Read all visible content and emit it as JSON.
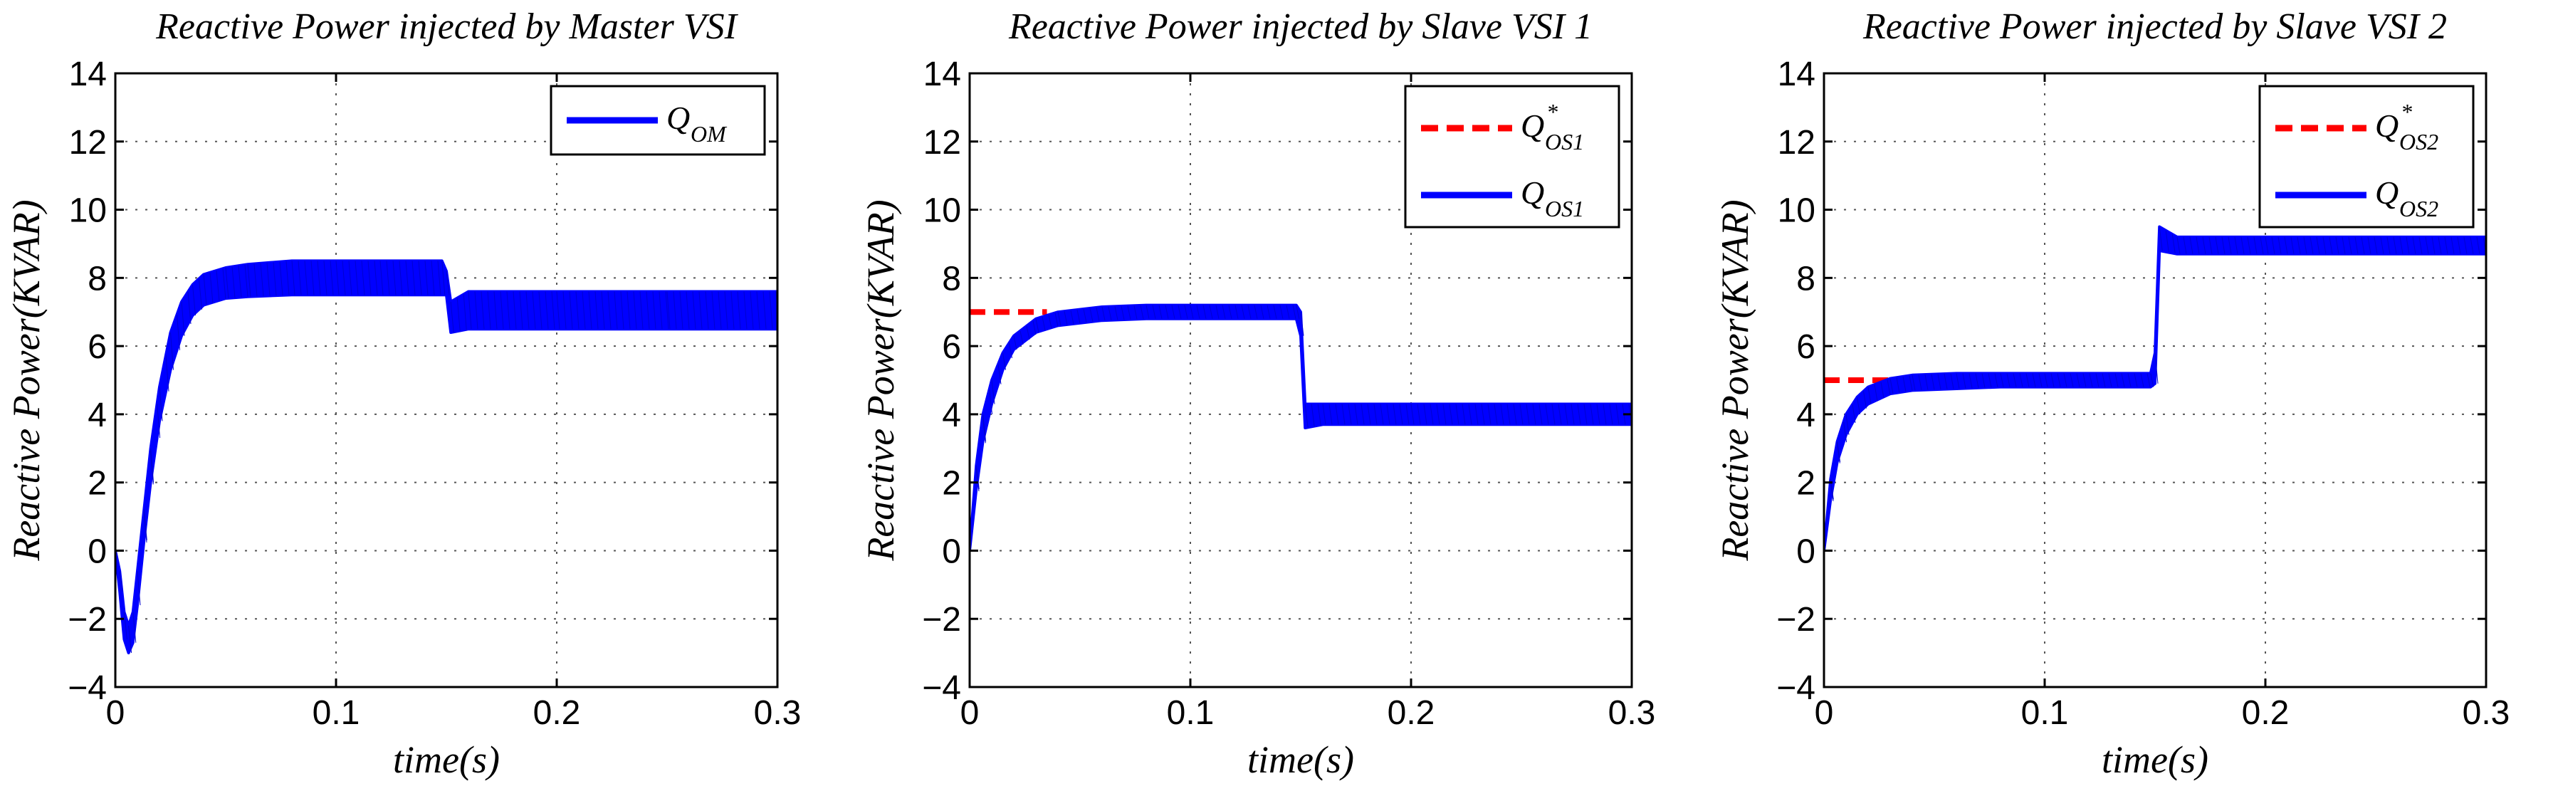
{
  "chart_data": [
    {
      "type": "line",
      "title": "Reactive Power injected by Master VSI",
      "xlabel": "time(s)",
      "ylabel": "Reactive Power(KVAR)",
      "xlim": [
        0,
        0.3
      ],
      "ylim": [
        -4,
        14
      ],
      "xticks": [
        "0",
        "0.1",
        "0.2",
        "0.3"
      ],
      "yticks": [
        "−4",
        "−2",
        "0",
        "2",
        "4",
        "6",
        "8",
        "10",
        "12",
        "14"
      ],
      "grid": true,
      "legend_position": "top-right",
      "series": [
        {
          "legend_main": "Q",
          "legend_sub": "OM",
          "legend_sup": "",
          "color": "#0000ff",
          "style": "solid",
          "band": true,
          "x": [
            0,
            0.002,
            0.004,
            0.006,
            0.008,
            0.01,
            0.013,
            0.016,
            0.02,
            0.025,
            0.03,
            0.035,
            0.04,
            0.05,
            0.06,
            0.08,
            0.1,
            0.12,
            0.148,
            0.15,
            0.152,
            0.16,
            0.2,
            0.25,
            0.3
          ],
          "low": [
            0,
            -1.2,
            -2.6,
            -3.0,
            -2.7,
            -1.6,
            0.3,
            2.0,
            3.8,
            5.3,
            6.3,
            6.9,
            7.2,
            7.4,
            7.45,
            7.5,
            7.5,
            7.5,
            7.5,
            7.5,
            6.4,
            6.5,
            6.5,
            6.5,
            6.5
          ],
          "high": [
            0,
            -0.6,
            -1.8,
            -2.2,
            -1.8,
            -0.6,
            1.2,
            3.0,
            4.8,
            6.4,
            7.3,
            7.8,
            8.1,
            8.3,
            8.4,
            8.5,
            8.5,
            8.5,
            8.5,
            8.2,
            7.3,
            7.6,
            7.6,
            7.6,
            7.6
          ]
        }
      ]
    },
    {
      "type": "line",
      "title": "Reactive Power injected by Slave VSI 1",
      "xlabel": "time(s)",
      "ylabel": "Reactive Power(KVAR)",
      "xlim": [
        0,
        0.3
      ],
      "ylim": [
        -4,
        14
      ],
      "xticks": [
        "0",
        "0.1",
        "0.2",
        "0.3"
      ],
      "yticks": [
        "−4",
        "−2",
        "0",
        "2",
        "4",
        "6",
        "8",
        "10",
        "12",
        "14"
      ],
      "grid": true,
      "legend_position": "top-right",
      "series": [
        {
          "legend_main": "Q",
          "legend_sub": "OS1",
          "legend_sup": "*",
          "color": "#ff0000",
          "style": "dashed",
          "band": false,
          "x": [
            0,
            0.035
          ],
          "y": [
            7,
            7
          ]
        },
        {
          "legend_main": "Q",
          "legend_sub": "OS1",
          "legend_sup": "",
          "color": "#0000ff",
          "style": "solid",
          "band": true,
          "x": [
            0,
            0.003,
            0.006,
            0.01,
            0.015,
            0.02,
            0.03,
            0.04,
            0.06,
            0.08,
            0.1,
            0.148,
            0.15,
            0.152,
            0.16,
            0.2,
            0.3
          ],
          "low": [
            0,
            1.8,
            3.2,
            4.3,
            5.3,
            5.9,
            6.4,
            6.6,
            6.75,
            6.8,
            6.8,
            6.8,
            6.3,
            3.6,
            3.7,
            3.7,
            3.7
          ],
          "high": [
            0,
            2.5,
            4.0,
            5.0,
            5.8,
            6.3,
            6.8,
            7.0,
            7.15,
            7.2,
            7.2,
            7.2,
            7.0,
            4.3,
            4.3,
            4.3,
            4.3
          ]
        }
      ]
    },
    {
      "type": "line",
      "title": "Reactive Power injected by Slave VSI 2",
      "xlabel": "time(s)",
      "ylabel": "Reactive Power(KVAR)",
      "xlim": [
        0,
        0.3
      ],
      "ylim": [
        -4,
        14
      ],
      "xticks": [
        "0",
        "0.1",
        "0.2",
        "0.3"
      ],
      "yticks": [
        "−4",
        "−2",
        "0",
        "2",
        "4",
        "6",
        "8",
        "10",
        "12",
        "14"
      ],
      "grid": true,
      "legend_position": "top-right",
      "series": [
        {
          "legend_main": "Q",
          "legend_sub": "OS2",
          "legend_sup": "*",
          "color": "#ff0000",
          "style": "dashed",
          "band": false,
          "x": [
            0,
            0.035
          ],
          "y": [
            5,
            5
          ]
        },
        {
          "legend_main": "Q",
          "legend_sub": "OS2",
          "legend_sup": "",
          "color": "#0000ff",
          "style": "solid",
          "band": true,
          "x": [
            0,
            0.003,
            0.006,
            0.01,
            0.015,
            0.02,
            0.03,
            0.04,
            0.06,
            0.08,
            0.1,
            0.148,
            0.15,
            0.152,
            0.16,
            0.2,
            0.3
          ],
          "low": [
            0,
            1.5,
            2.6,
            3.4,
            4.0,
            4.3,
            4.6,
            4.7,
            4.75,
            4.8,
            4.8,
            4.8,
            4.9,
            8.8,
            8.7,
            8.7,
            8.7
          ],
          "high": [
            0,
            2.1,
            3.2,
            4.0,
            4.5,
            4.8,
            5.05,
            5.15,
            5.2,
            5.2,
            5.2,
            5.2,
            5.8,
            9.5,
            9.2,
            9.2,
            9.2
          ]
        }
      ]
    }
  ]
}
